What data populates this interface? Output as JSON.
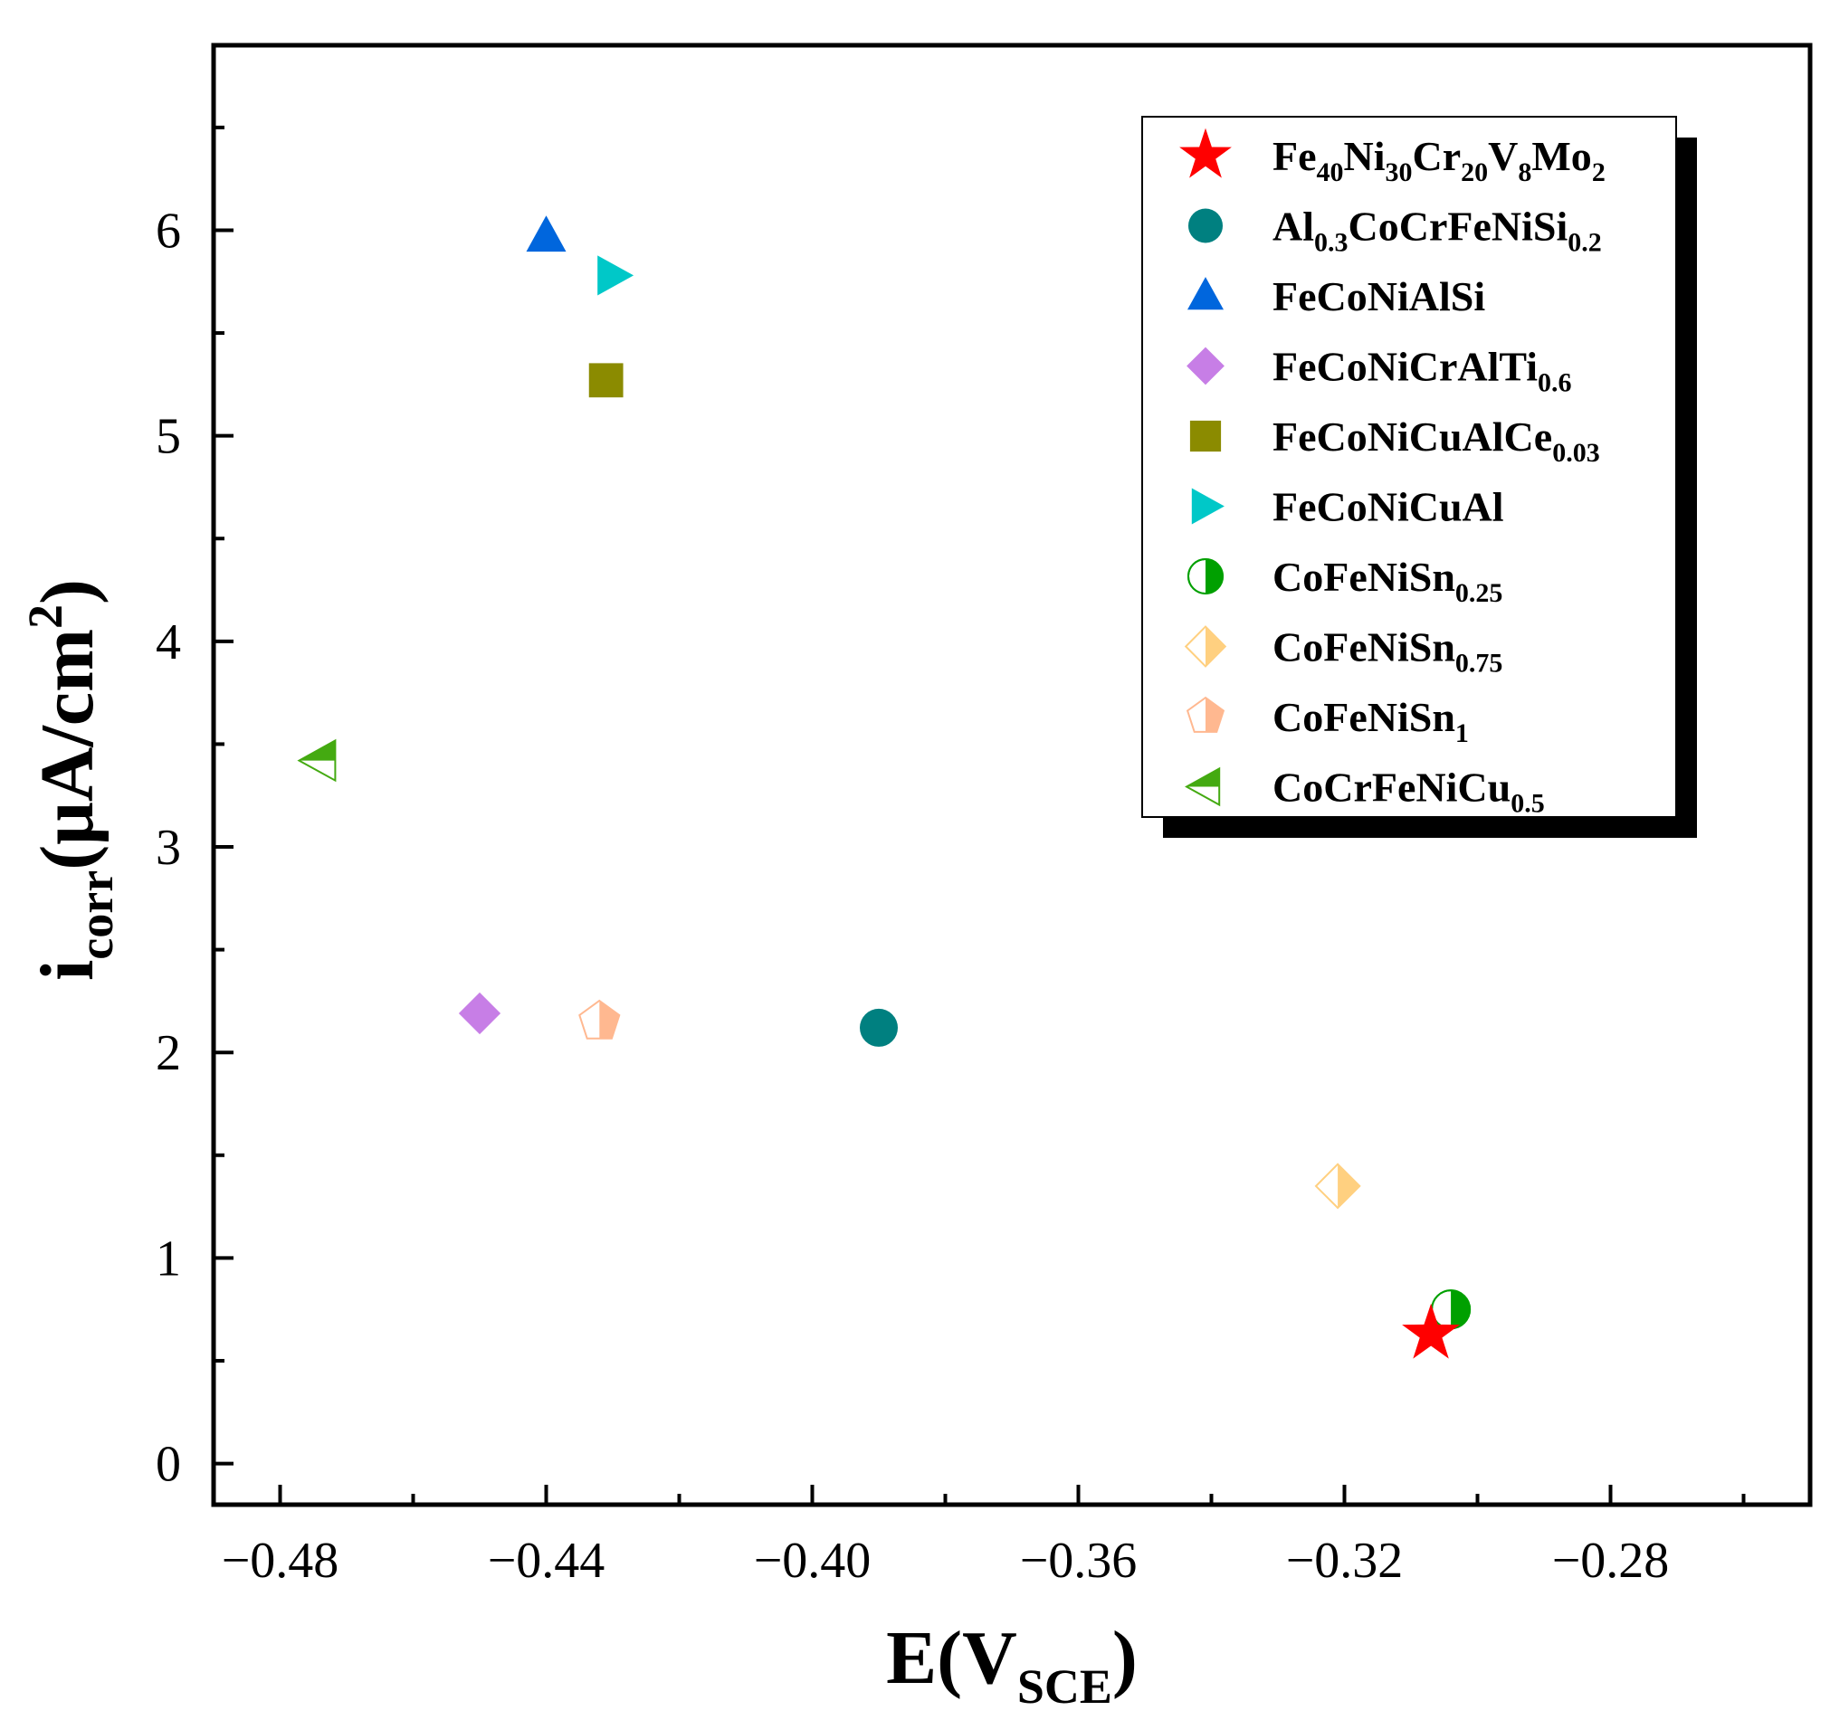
{
  "chart_data": {
    "type": "scatter",
    "xlabel": {
      "main": "E(V",
      "sub": "SCE",
      "tail": ")"
    },
    "ylabel": {
      "main": "i",
      "sub": "corr",
      "tail": "(μA/cm",
      "sup": "2",
      "end": ")"
    },
    "xlim": [
      -0.49,
      -0.25
    ],
    "ylim": [
      -0.2,
      6.9
    ],
    "x_ticks": [
      -0.48,
      -0.44,
      -0.4,
      -0.36,
      -0.32,
      -0.28
    ],
    "x_tick_labels": [
      "−0.48",
      "−0.44",
      "−0.40",
      "−0.36",
      "−0.32",
      "−0.28"
    ],
    "y_ticks": [
      0,
      1,
      2,
      3,
      4,
      5,
      6
    ],
    "y_tick_labels": [
      "0",
      "1",
      "2",
      "3",
      "4",
      "5",
      "6"
    ],
    "grid": false,
    "legend_position": "top-right",
    "series": [
      {
        "name": "Fe40Ni30Cr20V8Mo2",
        "label": [
          [
            "Fe",
            ""
          ],
          [
            "40",
            "sub"
          ],
          [
            "Ni",
            ""
          ],
          [
            "30",
            "sub"
          ],
          [
            "Cr",
            ""
          ],
          [
            "20",
            "sub"
          ],
          [
            "V",
            ""
          ],
          [
            "8",
            "sub"
          ],
          [
            "Mo",
            ""
          ],
          [
            "2",
            "sub"
          ]
        ],
        "marker": "star",
        "color": "#ff0000",
        "x": -0.307,
        "y": 0.63
      },
      {
        "name": "Al0.3CoCrFeNiSi0.2",
        "label": [
          [
            "Al",
            ""
          ],
          [
            "0.3",
            "sub"
          ],
          [
            "CoCrFeNiSi",
            ""
          ],
          [
            "0.2",
            "sub"
          ]
        ],
        "marker": "circle",
        "color": "#008080",
        "x": -0.39,
        "y": 2.12
      },
      {
        "name": "FeCoNiAlSi",
        "label": [
          [
            "FeCoNiAlSi",
            ""
          ]
        ],
        "marker": "triangle-up",
        "color": "#0066dd",
        "x": -0.44,
        "y": 5.97
      },
      {
        "name": "FeCoNiCrAlTi0.6",
        "label": [
          [
            "FeCoNiCrAlTi",
            ""
          ],
          [
            "0.6",
            "sub"
          ]
        ],
        "marker": "diamond",
        "color": "#c77ee6",
        "x": -0.45,
        "y": 2.19
      },
      {
        "name": "FeCoNiCuAlCe0.03",
        "label": [
          [
            "FeCoNiCuAlCe",
            ""
          ],
          [
            "0.03",
            "sub"
          ]
        ],
        "marker": "square",
        "color": "#8b8b00",
        "x": -0.431,
        "y": 5.27
      },
      {
        "name": "FeCoNiCuAl",
        "label": [
          [
            "FeCoNiCuAl",
            ""
          ]
        ],
        "marker": "triangle-right",
        "color": "#00c8c8",
        "x": -0.43,
        "y": 5.78
      },
      {
        "name": "CoFeNiSn0.25",
        "label": [
          [
            "CoFeNiSn",
            ""
          ],
          [
            "0.25",
            "sub"
          ]
        ],
        "marker": "circle-half",
        "color": "#00a000",
        "x": -0.304,
        "y": 0.75
      },
      {
        "name": "CoFeNiSn0.75",
        "label": [
          [
            "CoFeNiSn",
            ""
          ],
          [
            "0.75",
            "sub"
          ]
        ],
        "marker": "diamond-half",
        "color": "#ffd080",
        "x": -0.321,
        "y": 1.35
      },
      {
        "name": "CoFeNiSn1",
        "label": [
          [
            "CoFeNiSn",
            ""
          ],
          [
            "1",
            "sub"
          ]
        ],
        "marker": "pentagon-half",
        "color": "#ffb890",
        "x": -0.432,
        "y": 2.15
      },
      {
        "name": "CoCrFeNiCu0.5",
        "label": [
          [
            "CoCrFeNiCu",
            ""
          ],
          [
            "0.5",
            "sub"
          ]
        ],
        "marker": "triangle-left-half",
        "color": "#44aa11",
        "x": -0.474,
        "y": 3.42
      }
    ]
  }
}
